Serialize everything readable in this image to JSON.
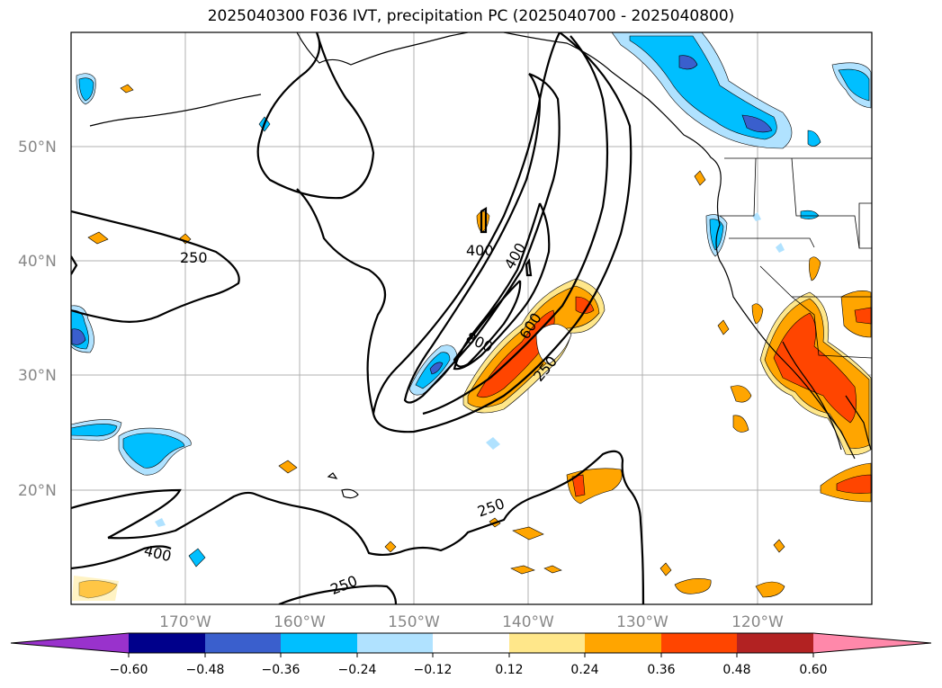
{
  "title": "2025040300 F036 IVT, precipitation PC (2025040700 - 2025040800)",
  "map": {
    "lat_labels": [
      "50°N",
      "40°N",
      "30°N",
      "20°N"
    ],
    "lon_labels": [
      "170°W",
      "160°W",
      "150°W",
      "140°W",
      "130°W",
      "120°W"
    ],
    "ivt_contour_labels": [
      "250",
      "250",
      "250",
      "250",
      "400",
      "400",
      "400",
      "600",
      "800"
    ]
  },
  "colorbar": {
    "ticks": [
      "−0.60",
      "−0.48",
      "−0.36",
      "−0.24",
      "−0.12",
      "0.12",
      "0.24",
      "0.36",
      "0.48",
      "0.60"
    ],
    "colors": [
      "#9932cc",
      "#00008b",
      "#3a5fcd",
      "#00bfff",
      "#b0e2ff",
      "#ffffff",
      "#ffe78a",
      "#ffa500",
      "#ff4500",
      "#b22222",
      "#ff88aa"
    ]
  }
}
